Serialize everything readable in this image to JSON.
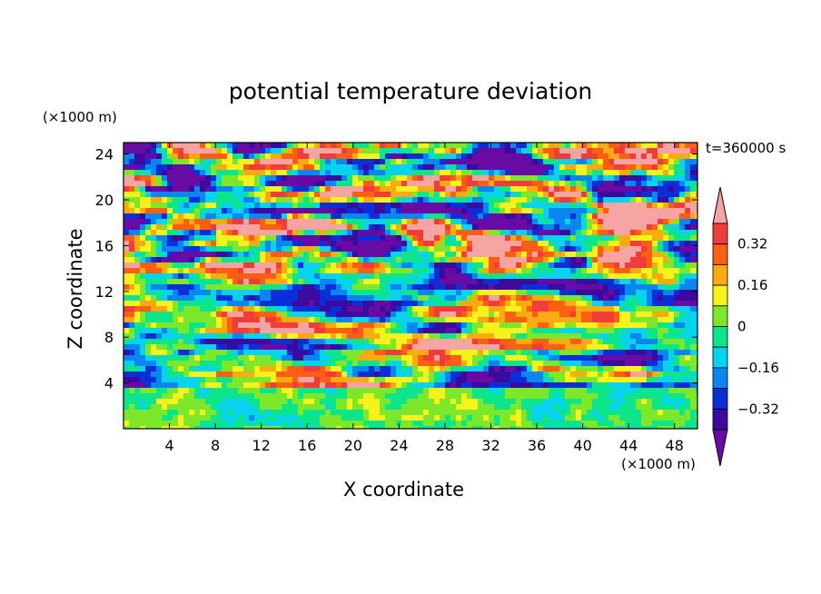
{
  "chart_data": {
    "type": "heatmap",
    "title": "potential temperature deviation",
    "xlabel": "X coordinate",
    "ylabel": "Z coordinate",
    "x_units": "(×1000 m)",
    "y_units": "(×1000 m)",
    "time_label": "t=360000 s",
    "xlim": [
      0,
      50
    ],
    "ylim": [
      0,
      25
    ],
    "x_ticks": [
      4,
      8,
      12,
      16,
      20,
      24,
      28,
      32,
      36,
      40,
      44,
      48
    ],
    "y_ticks": [
      4,
      8,
      12,
      16,
      20,
      24
    ],
    "colorbar": {
      "levels": [
        -0.4,
        -0.32,
        -0.24,
        -0.16,
        -0.08,
        0,
        0.08,
        0.16,
        0.24,
        0.32,
        0.4
      ],
      "tick_labels": [
        "0.32",
        "0.16",
        "0",
        "−0.16",
        "−0.32"
      ],
      "tick_values": [
        0.32,
        0.16,
        0,
        -0.16,
        -0.32
      ],
      "colors": [
        "#6a0aa5",
        "#3b0a9e",
        "#0b2ed9",
        "#0a86f0",
        "#06d3ee",
        "#0ce58a",
        "#7de82a",
        "#f6f31c",
        "#fbaa12",
        "#fd5f12",
        "#f23b3b",
        "#f6a3a3"
      ]
    }
  }
}
